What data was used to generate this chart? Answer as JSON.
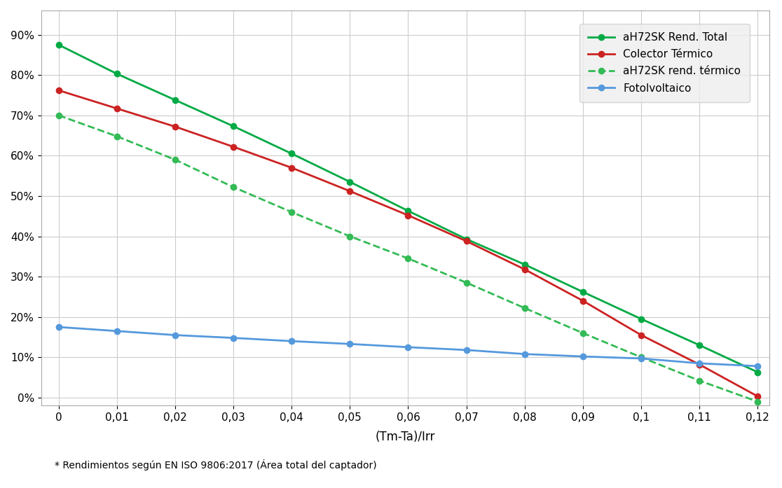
{
  "x": [
    0,
    0.01,
    0.02,
    0.03,
    0.04,
    0.05,
    0.06,
    0.07,
    0.08,
    0.09,
    0.1,
    0.11,
    0.12
  ],
  "aH72SK_total": [
    0.875,
    0.803,
    0.738,
    0.673,
    0.605,
    0.535,
    0.463,
    0.393,
    0.33,
    0.262,
    0.195,
    0.13,
    0.063
  ],
  "colector_termico": [
    0.762,
    0.717,
    0.672,
    0.622,
    0.57,
    0.512,
    0.452,
    0.388,
    0.318,
    0.24,
    0.155,
    0.082,
    0.003
  ],
  "aH72SK_termico": [
    0.7,
    0.648,
    0.59,
    0.522,
    0.46,
    0.4,
    0.345,
    0.285,
    0.222,
    0.16,
    0.1,
    0.042,
    -0.01
  ],
  "fotovoltaico": [
    0.175,
    0.165,
    0.155,
    0.148,
    0.14,
    0.133,
    0.125,
    0.118,
    0.108,
    0.102,
    0.097,
    0.085,
    0.078
  ],
  "aH72SK_total_color": "#00aa44",
  "colector_termico_color": "#cc2222",
  "aH72SK_termico_color": "#33bb55",
  "fotovoltaico_color": "#5599dd",
  "xlabel": "(Tm-Ta)/Irr",
  "ylabel": "",
  "title": "",
  "footnote": "* Rendimientos según EN ISO 9806:2017 (Área total del captador)",
  "legend_labels": [
    "aH72SK Rend. Total",
    "Colector Térmico",
    "aH72SK rend. térmico",
    "Fotolvoltaico"
  ],
  "ylim": [
    0,
    0.95
  ],
  "xlim": [
    0,
    0.12
  ],
  "yticks": [
    0,
    0.1,
    0.2,
    0.3,
    0.4,
    0.5,
    0.6,
    0.7,
    0.8,
    0.9
  ],
  "xticks": [
    0,
    0.01,
    0.02,
    0.03,
    0.04,
    0.05,
    0.06,
    0.07,
    0.08,
    0.09,
    0.1,
    0.11,
    0.12
  ],
  "xtick_labels": [
    "0",
    "0,01",
    "0,02",
    "0,03",
    "0,04",
    "0,05",
    "0,06",
    "0,07",
    "0,08",
    "0,09",
    "0,1",
    "0,11",
    "0,12"
  ],
  "ytick_labels": [
    "0%",
    "10%",
    "20%",
    "30%",
    "40%",
    "50%",
    "60%",
    "70%",
    "80%",
    "90%"
  ]
}
